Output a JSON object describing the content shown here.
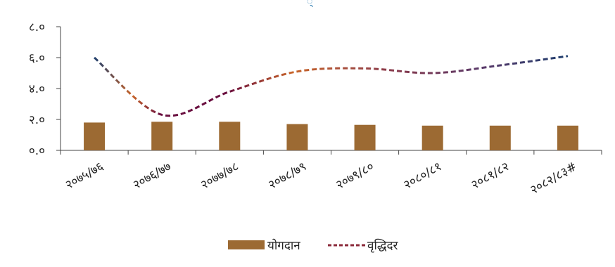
{
  "chart_data": {
    "type": "bar+line",
    "title": "",
    "xlabel": "",
    "ylabel": "",
    "ylim": [
      0,
      8
    ],
    "yticks": [
      "०.०",
      "२.०",
      "४.०",
      "६.०",
      "८.०"
    ],
    "categories": [
      "२०७५/७६",
      "२०७६/७७",
      "२०७७/७८",
      "२०७८/७९",
      "२०७९/८०",
      "२०८०/८१",
      "२०८१/८२",
      "२०८२/८३#"
    ],
    "series": [
      {
        "name": "योगदान",
        "kind": "bar",
        "color": "#9c6a33",
        "values": [
          1.8,
          1.85,
          1.85,
          1.7,
          1.65,
          1.6,
          1.6,
          1.6
        ]
      },
      {
        "name": "वृद्धिदर",
        "kind": "line",
        "style": "dashed",
        "color": "#8b2a3a",
        "values": [
          6.0,
          2.3,
          3.8,
          5.1,
          5.3,
          5.0,
          5.5,
          6.1
        ]
      }
    ],
    "grid": false,
    "legend": "bottom-center"
  }
}
